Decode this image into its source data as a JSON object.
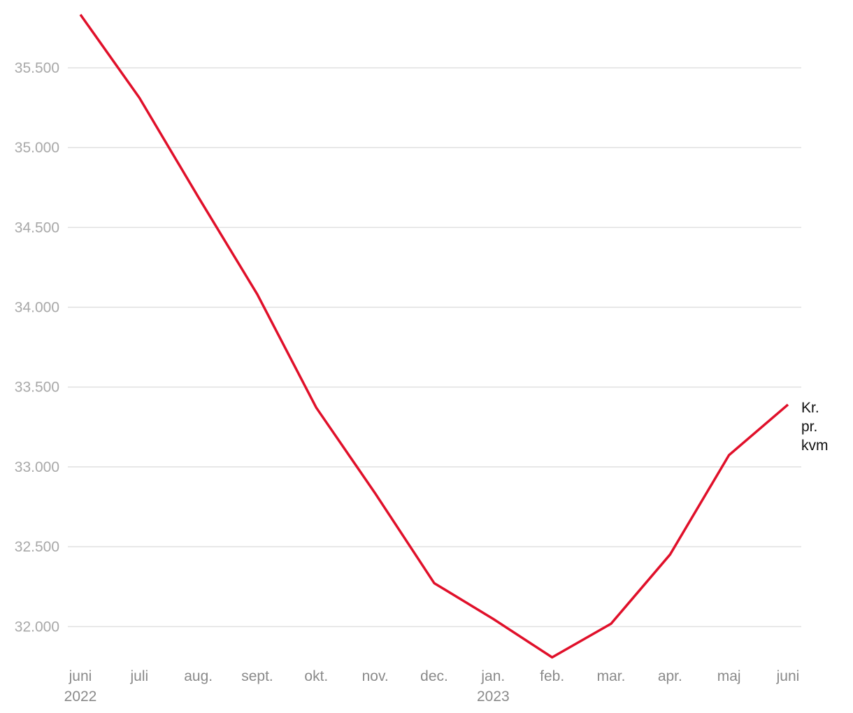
{
  "chart_data": {
    "type": "line",
    "categories": [
      "juni",
      "juli",
      "aug.",
      "sept.",
      "okt.",
      "nov.",
      "dec.",
      "jan.",
      "feb.",
      "mar.",
      "apr.",
      "maj",
      "juni"
    ],
    "category_years": [
      "2022",
      null,
      null,
      null,
      null,
      null,
      null,
      "2023",
      null,
      null,
      null,
      null,
      null
    ],
    "series": [
      {
        "name": "Kr. pr. kvm",
        "color": "#e0102a",
        "values": [
          35833,
          35312,
          34690,
          34081,
          33371,
          32834,
          32272,
          32048,
          31807,
          32018,
          32451,
          33074,
          33390
        ]
      }
    ],
    "ylim": [
      31800,
      35850
    ],
    "yticks": [
      {
        "value": 32000,
        "label": "32.000"
      },
      {
        "value": 32500,
        "label": "32.500"
      },
      {
        "value": 33000,
        "label": "33.000"
      },
      {
        "value": 33500,
        "label": "33.500"
      },
      {
        "value": 34000,
        "label": "34.000"
      },
      {
        "value": 34500,
        "label": "34.500"
      },
      {
        "value": 35000,
        "label": "35.000"
      },
      {
        "value": 35500,
        "label": "35.500"
      }
    ],
    "grid": true
  }
}
